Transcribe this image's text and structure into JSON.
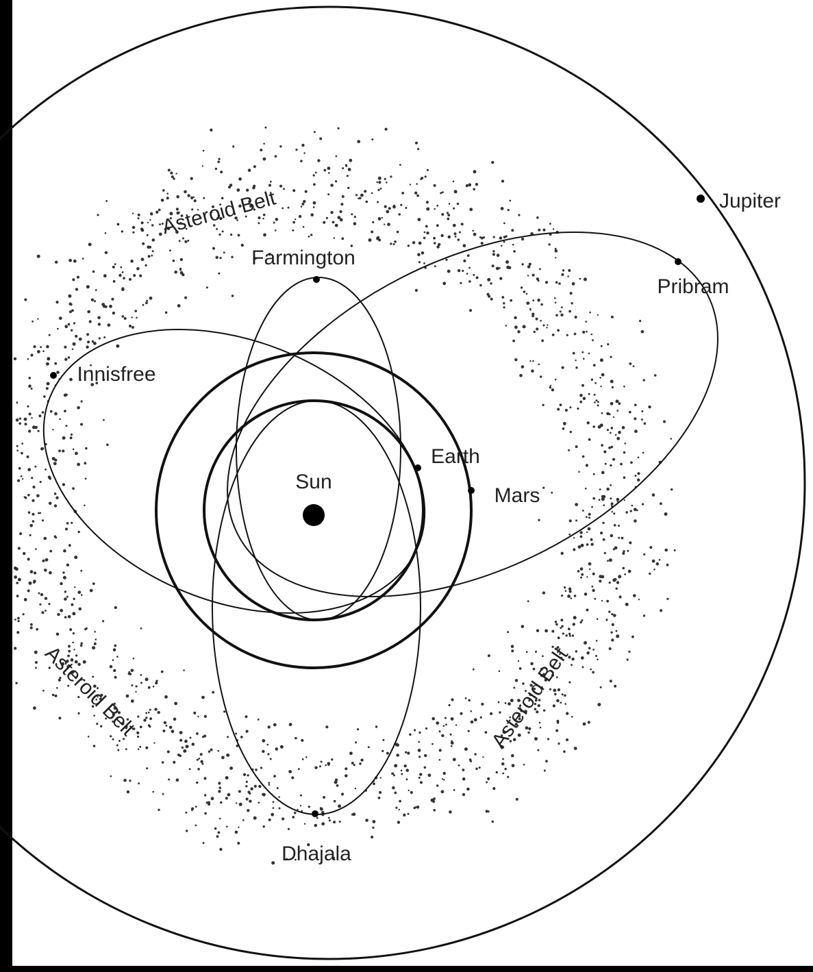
{
  "labels": {
    "belt_top": "Asteroid Belt",
    "belt_left": "Asteroid Belt",
    "belt_right": "Asteroid Belt",
    "farmington": "Farmington",
    "pribram": "Pribram",
    "jupiter": "Jupiter",
    "innisfree": "Innisfree",
    "earth": "Earth",
    "mars": "Mars",
    "sun": "Sun",
    "dhajala": "Dhajala"
  }
}
